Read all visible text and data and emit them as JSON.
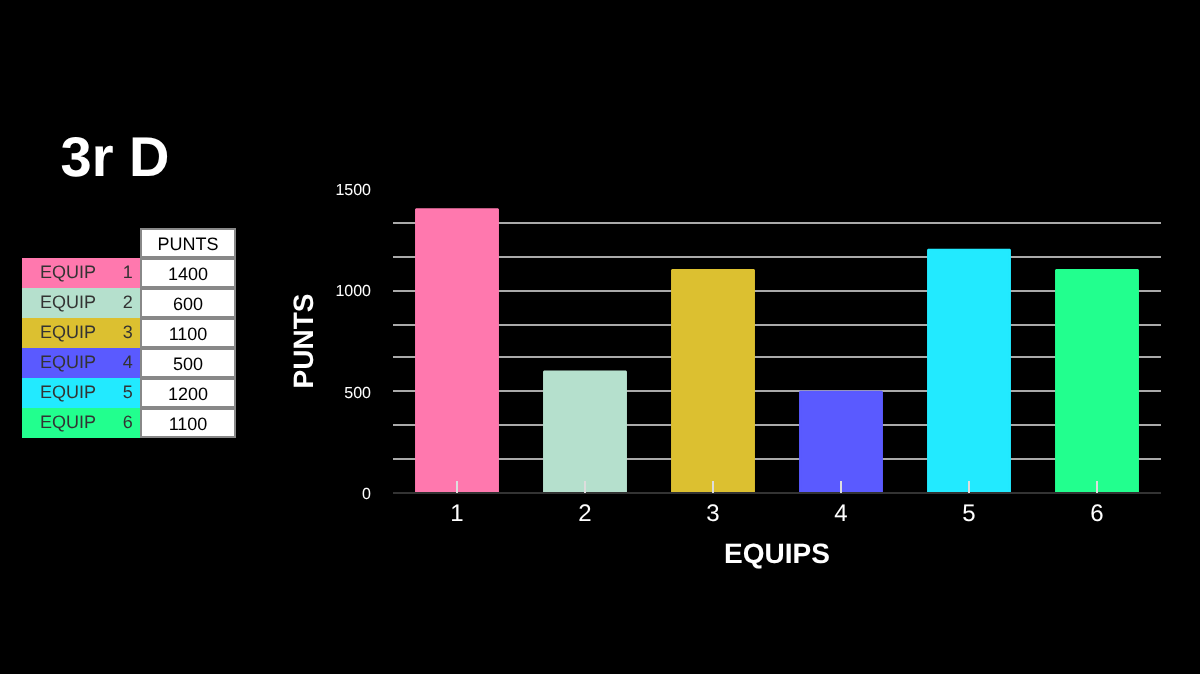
{
  "chart_data": [
    {
      "type": "other",
      "title": "3r D",
      "ylabel": "PUNTS",
      "annotations": [
        "EQUIP"
      ],
      "categories": [
        "1",
        "2",
        "3",
        "4",
        "5",
        "6"
      ],
      "values": [
        1400,
        600,
        1100,
        500,
        1200,
        1100
      ],
      "colors": [
        "#ff78ae",
        "#b5e0cd",
        "#dcc030",
        "#5a5aff",
        "#22eaff",
        "#22ff8e"
      ],
      "data_labels": true
    },
    {
      "type": "bar",
      "xlabel": "EQUIPS",
      "ylabel": "PUNTS",
      "categories": [
        "1",
        "2",
        "3",
        "4",
        "5",
        "6"
      ],
      "values": [
        1400,
        600,
        1100,
        500,
        1200,
        1100
      ],
      "colors": [
        "#ff78ae",
        "#b5e0cd",
        "#dcc030",
        "#5a5aff",
        "#22eaff",
        "#22ff8e"
      ],
      "ylim": [
        0,
        1500
      ],
      "yticks": [
        0,
        {
          "value": 166.7,
          "label": null
        },
        {
          "value": 333.3,
          "label": null
        },
        500,
        {
          "value": 666.7,
          "label": null
        },
        {
          "value": 833.3,
          "label": null
        },
        1000,
        {
          "value": 1166.7,
          "label": null
        },
        {
          "value": 1333.3,
          "label": null
        },
        1500
      ],
      "grid": "y"
    }
  ]
}
